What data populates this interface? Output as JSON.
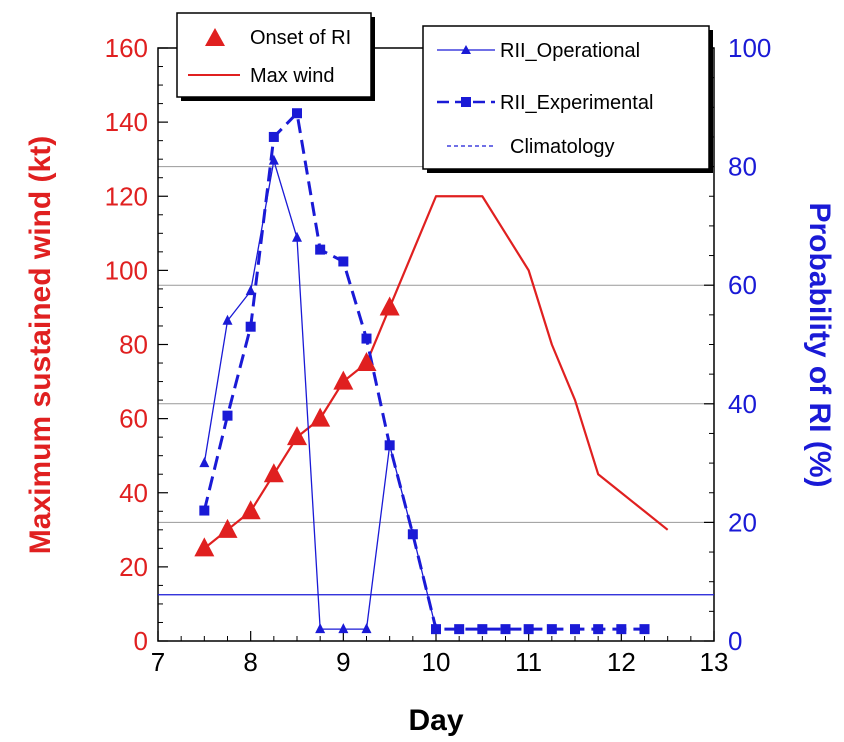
{
  "chart_data": {
    "type": "line",
    "xlabel": "Day",
    "ylabel_left": "Maximum sustained wind (kt)",
    "ylabel_right": "Probability of RI (%)",
    "xlim": [
      7,
      13
    ],
    "ylim_left": [
      0,
      160
    ],
    "ylim_right": [
      0,
      100
    ],
    "x_ticks": [
      "7",
      "8",
      "9",
      "10",
      "11",
      "12",
      "13"
    ],
    "y_left_ticks": [
      "0",
      "20",
      "40",
      "60",
      "80",
      "100",
      "120",
      "140",
      "160"
    ],
    "y_right_ticks": [
      "0",
      "20",
      "40",
      "60",
      "80",
      "100"
    ],
    "grid_y_right": [
      20,
      40,
      60,
      80,
      100
    ],
    "colors": {
      "wind": "#e02020",
      "probability": "#1a1ad6",
      "grid": "#999999"
    },
    "series": [
      {
        "name": "Max wind",
        "axis": "left",
        "style": "solid",
        "x": [
          7.5,
          7.75,
          8.0,
          8.25,
          8.5,
          8.75,
          9.0,
          9.25,
          9.5,
          9.75,
          10.0,
          10.25,
          10.5,
          10.75,
          11.0,
          11.25,
          11.5,
          11.75,
          12.0,
          12.25,
          12.5
        ],
        "y": [
          25,
          30,
          35,
          45,
          55,
          60,
          70,
          75,
          90,
          105,
          120,
          120,
          120,
          110,
          100,
          80,
          65,
          45,
          40,
          35,
          30
        ]
      },
      {
        "name": "Onset of RI",
        "axis": "left",
        "style": "markers",
        "marker": "triangle",
        "x": [
          7.5,
          7.75,
          8.0,
          8.25,
          8.5,
          8.75,
          9.0,
          9.25,
          9.5
        ],
        "y": [
          25,
          30,
          35,
          45,
          55,
          60,
          70,
          75,
          90
        ]
      },
      {
        "name": "RII_Operational",
        "axis": "right",
        "style": "thin",
        "marker": "triangle",
        "x": [
          7.5,
          7.75,
          8.0,
          8.25,
          8.5,
          8.75,
          9.0,
          9.25,
          9.5,
          9.75,
          10.0
        ],
        "y": [
          30,
          54,
          59,
          81,
          68,
          2,
          2,
          2,
          33,
          18,
          2
        ]
      },
      {
        "name": "RII_Experimental",
        "axis": "right",
        "style": "dashed",
        "marker": "square",
        "x": [
          7.5,
          7.75,
          8.0,
          8.25,
          8.5,
          8.75,
          9.0,
          9.25,
          9.5,
          9.75,
          10.0,
          10.25,
          10.5,
          10.75,
          11.0,
          11.25,
          11.5,
          11.75,
          12.0,
          12.25
        ],
        "y": [
          22,
          38,
          53,
          85,
          89,
          66,
          64,
          51,
          33,
          18,
          2,
          2,
          2,
          2,
          2,
          2,
          2,
          2,
          2,
          2
        ]
      },
      {
        "name": "Climatology",
        "axis": "right",
        "style": "flat",
        "x": [
          7,
          13
        ],
        "y": [
          7.8,
          7.8
        ]
      }
    ],
    "legend_left": [
      {
        "label": "Onset of RI",
        "series": "Onset of RI"
      },
      {
        "label": "Max wind",
        "series": "Max wind"
      }
    ],
    "legend_right": [
      {
        "label": "RII_Operational",
        "series": "RII_Operational"
      },
      {
        "label": "RII_Experimental",
        "series": "RII_Experimental"
      },
      {
        "label": "Climatology",
        "series": "Climatology"
      }
    ]
  }
}
